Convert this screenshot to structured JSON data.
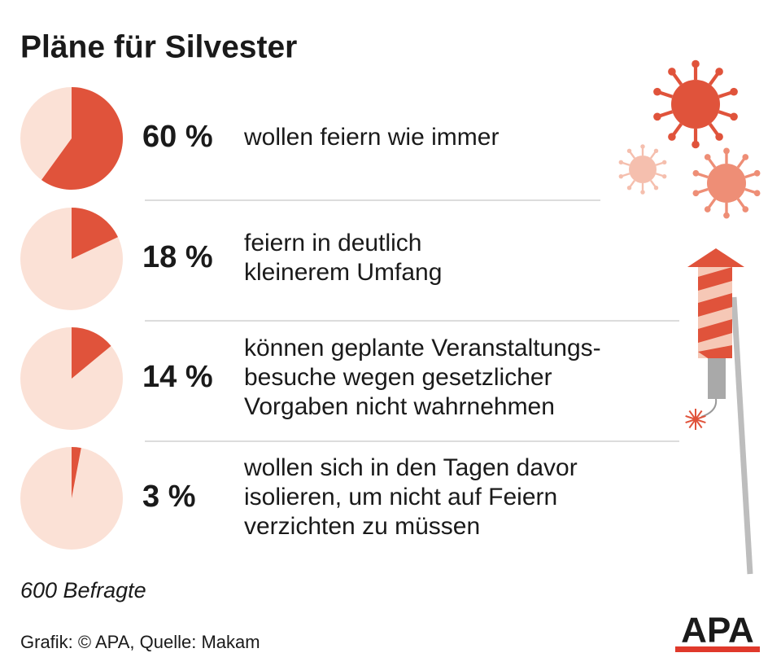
{
  "chart_data": {
    "type": "pie",
    "title": "Pläne für Silvester",
    "values": [
      60,
      18,
      14,
      3
    ],
    "value_labels": [
      "60 %",
      "18 %",
      "14 %",
      "3 %"
    ],
    "categories": [
      [
        "wollen feiern wie immer"
      ],
      [
        "feiern in deutlich",
        "kleinerem Umfang"
      ],
      [
        "können geplante Veranstaltungs-",
        "besuche wegen gesetzlicher",
        "Vorgaben nicht wahrnehmen"
      ],
      [
        "wollen sich in den Tagen davor",
        "isolieren, um nicht auf Feiern",
        "verzichten zu müssen"
      ]
    ],
    "color": "#e0533b",
    "background_color": "#fbe1d6",
    "note": "600 Befragte",
    "source": "Grafik: © APA, Quelle: Makam",
    "logo": "APA"
  }
}
